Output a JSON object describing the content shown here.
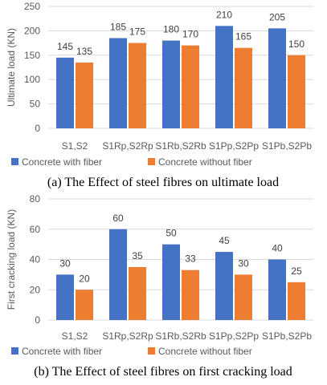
{
  "colors": {
    "with_fiber": "#4472C4",
    "without_fiber": "#ED7D31"
  },
  "chart_data": [
    {
      "type": "bar",
      "title": "",
      "xlabel": "",
      "ylabel": "Ultimate load (KN)",
      "ylim": [
        0,
        250
      ],
      "yticks": [
        0,
        50,
        100,
        150,
        200,
        250
      ],
      "categories": [
        "S1,S2",
        "S1Rp,S2Rp",
        "S1Rb,S2Rb",
        "S1Pp,S2Pp",
        "S1Pb,S2Pb"
      ],
      "series": [
        {
          "name": "Concrete with fiber",
          "values": [
            145,
            185,
            180,
            210,
            205
          ]
        },
        {
          "name": "Concrete without fiber",
          "values": [
            135,
            175,
            170,
            165,
            150
          ]
        }
      ],
      "legend": "bottom",
      "caption": "(a) The Effect of steel fibres on ultimate load"
    },
    {
      "type": "bar",
      "title": "",
      "xlabel": "",
      "ylabel": "First cracking load (KN)",
      "ylim": [
        0,
        80
      ],
      "yticks": [
        0,
        20,
        40,
        60,
        80
      ],
      "categories": [
        "S1,S2",
        "S1Rp,S2Rp",
        "S1Rb,S2Rb",
        "S1Pp,S2Pp",
        "S1Pb,S2Pb"
      ],
      "series": [
        {
          "name": "Concrete with fiber",
          "values": [
            30,
            60,
            50,
            45,
            40
          ]
        },
        {
          "name": "Concrete without fiber",
          "values": [
            20,
            35,
            33,
            30,
            25
          ]
        }
      ],
      "legend": "bottom",
      "caption": "(b) The Effect of steel fibres on first cracking load"
    }
  ]
}
